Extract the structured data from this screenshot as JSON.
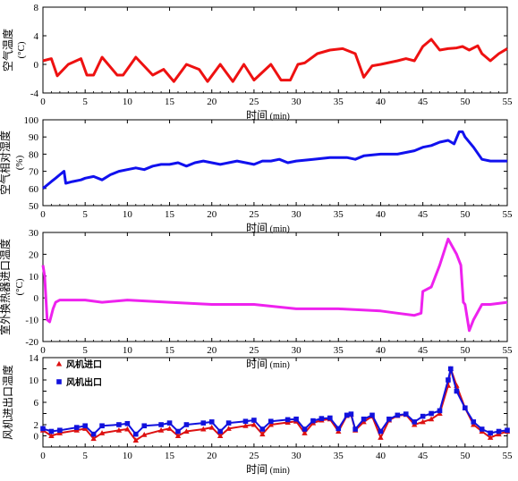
{
  "figure": {
    "background": "#ffffff"
  },
  "chart_data": [
    {
      "type": "line",
      "ylabel": "空气温度",
      "yunit": "(°C)",
      "xlabel": "时间",
      "xunit": "(min)",
      "xlim": [
        0,
        55
      ],
      "ylim": [
        -4,
        8
      ],
      "xticks": [
        0,
        5,
        10,
        15,
        20,
        25,
        30,
        35,
        40,
        45,
        50,
        55
      ],
      "yticks": [
        -4,
        0,
        4,
        8
      ],
      "series": [
        {
          "color": "#ee1111",
          "x": [
            0,
            1,
            1.7,
            3,
            4.5,
            5.2,
            6,
            7,
            8.8,
            9.5,
            11,
            13,
            14.3,
            15.5,
            17,
            18.5,
            19.5,
            21,
            22.5,
            23.8,
            25,
            27,
            28.2,
            29.3,
            30.2,
            31,
            32.5,
            34,
            35.5,
            37,
            38,
            39,
            40,
            42,
            43,
            44,
            45,
            46,
            47,
            48,
            49,
            49.7,
            50.5,
            51.5,
            52,
            53,
            54,
            55
          ],
          "y": [
            0.5,
            0.8,
            -1.6,
            0,
            0.8,
            -1.5,
            -1.5,
            1,
            -1.5,
            -1.5,
            1,
            -1.5,
            -0.7,
            -2.4,
            0,
            -0.7,
            -2.4,
            0,
            -2.4,
            0,
            -2.2,
            0,
            -2.2,
            -2.2,
            0,
            0.2,
            1.5,
            2,
            2.2,
            1.5,
            -1.8,
            -0.2,
            0,
            0.5,
            0.8,
            0.5,
            2.5,
            3.5,
            2,
            2.2,
            2.3,
            2.5,
            2,
            2.6,
            1.5,
            0.5,
            1.5,
            2.2
          ]
        }
      ]
    },
    {
      "type": "line",
      "ylabel": "空气相对湿度",
      "yunit": "(%)",
      "xlabel": "时间",
      "xunit": "(min)",
      "xlim": [
        0,
        55
      ],
      "ylim": [
        50,
        100
      ],
      "xticks": [
        0,
        5,
        10,
        15,
        20,
        25,
        30,
        35,
        40,
        45,
        50,
        55
      ],
      "yticks": [
        50,
        60,
        70,
        80,
        90,
        100
      ],
      "series": [
        {
          "color": "#1111ee",
          "x": [
            0,
            0.5,
            1,
            1.5,
            2,
            2.5,
            2.7,
            3.5,
            4.5,
            5,
            6,
            7,
            8,
            9,
            10,
            11,
            12,
            13,
            14,
            15,
            16,
            17,
            18,
            19,
            20,
            21,
            22,
            23,
            24,
            25,
            26,
            27,
            28,
            29,
            30,
            32,
            34,
            36,
            37,
            38,
            40,
            42,
            44,
            45,
            46,
            47,
            48,
            48.7,
            49.3,
            49.7,
            50,
            51,
            52,
            53,
            54,
            55
          ],
          "y": [
            60,
            62,
            64,
            66,
            68,
            70,
            63,
            64,
            65,
            66,
            67,
            65,
            68,
            70,
            71,
            72,
            71,
            73,
            74,
            74,
            75,
            73,
            75,
            76,
            75,
            74,
            75,
            76,
            75,
            74,
            76,
            76,
            77,
            75,
            76,
            77,
            78,
            78,
            77,
            79,
            80,
            80,
            82,
            84,
            85,
            87,
            88,
            86,
            93,
            93,
            90,
            84,
            77,
            76,
            76,
            76
          ]
        }
      ]
    },
    {
      "type": "line",
      "ylabel": "室外换热器进口温度",
      "yunit": "(°C)",
      "xlabel": "时间",
      "xunit": "(min)",
      "xlim": [
        0,
        55
      ],
      "ylim": [
        -20,
        30
      ],
      "xticks": [
        0,
        5,
        10,
        15,
        20,
        25,
        30,
        35,
        40,
        45,
        50,
        55
      ],
      "yticks": [
        -20,
        -10,
        0,
        10,
        20,
        30
      ],
      "series": [
        {
          "color": "#ee22ee",
          "x": [
            0,
            0.2,
            0.5,
            0.8,
            1,
            1.2,
            1.5,
            2,
            3,
            5,
            7,
            10,
            15,
            20,
            25,
            30,
            35,
            40,
            42,
            44,
            44.8,
            45,
            46,
            47,
            48,
            49,
            49.5,
            49.8,
            50,
            50.5,
            51,
            52,
            53,
            55
          ],
          "y": [
            15,
            10,
            -10,
            -11,
            -8,
            -5,
            -2,
            -1,
            -1,
            -1,
            -2,
            -1,
            -2,
            -3,
            -3,
            -5,
            -5,
            -6,
            -7,
            -8,
            -7,
            3,
            5,
            15,
            27,
            20,
            15,
            -2,
            -3,
            -15,
            -10,
            -3,
            -3,
            -2
          ]
        }
      ]
    },
    {
      "type": "line",
      "ylabel": "风机进出口温度",
      "yunit": "",
      "xlabel": "时间",
      "xunit": "(min)",
      "xlim": [
        0,
        55
      ],
      "ylim": [
        -2,
        14
      ],
      "xticks": [
        0,
        5,
        10,
        15,
        20,
        25,
        30,
        35,
        40,
        45,
        50,
        55
      ],
      "yticks": [
        0,
        2,
        4,
        6,
        8,
        10,
        12,
        14
      ],
      "yticklabels": [
        "0",
        "2",
        "",
        "6",
        "",
        "10",
        "",
        "14"
      ],
      "legend_position": "top-left",
      "series": [
        {
          "name": "风机进口",
          "color": "#dd1111",
          "marker": "triangle",
          "x": [
            0,
            1,
            2,
            4,
            5,
            6,
            7,
            9,
            10,
            11,
            12,
            14,
            15,
            16,
            17,
            19,
            20,
            21,
            22,
            24,
            25,
            26,
            27,
            29,
            30,
            31,
            32,
            33,
            34,
            35,
            36,
            36.5,
            37,
            38,
            39,
            40,
            41,
            42,
            43,
            44,
            45,
            46,
            47,
            48,
            48.3,
            49,
            50,
            51,
            52,
            53,
            54,
            55
          ],
          "y": [
            1,
            0,
            0.5,
            1,
            1.3,
            -0.5,
            0.5,
            1,
            1.2,
            -0.8,
            0.2,
            1,
            1.3,
            0,
            0.8,
            1.2,
            1.5,
            0,
            1.3,
            1.8,
            2,
            0.3,
            2,
            2.4,
            2.6,
            0.5,
            2.3,
            2.8,
            3,
            0.8,
            3.6,
            3.8,
            1,
            2.5,
            3.5,
            -0.3,
            2.8,
            3.6,
            3.8,
            2,
            2.5,
            3,
            4,
            9,
            12,
            9,
            5,
            2,
            0.8,
            -0.3,
            0.3,
            0.8
          ]
        },
        {
          "name": "风机出口",
          "color": "#1111dd",
          "marker": "square",
          "x": [
            0,
            1,
            2,
            4,
            5,
            6,
            7,
            9,
            10,
            11,
            12,
            14,
            15,
            16,
            17,
            19,
            20,
            21,
            22,
            24,
            25,
            26,
            27,
            29,
            30,
            31,
            32,
            33,
            34,
            35,
            36,
            36.5,
            37,
            38,
            39,
            40,
            41,
            42,
            43,
            44,
            45,
            46,
            47,
            48,
            48.3,
            49,
            50,
            51,
            52,
            53,
            54,
            55
          ],
          "y": [
            1.3,
            0.8,
            1,
            1.5,
            1.8,
            0.3,
            1.8,
            2,
            2.2,
            0.3,
            1.8,
            2,
            2.3,
            0.8,
            2,
            2.3,
            2.5,
            0.8,
            2.3,
            2.6,
            2.8,
            1.2,
            2.6,
            2.9,
            3,
            1.2,
            2.7,
            3.1,
            3.2,
            1.3,
            3.7,
            3.9,
            1.2,
            3,
            3.7,
            0.8,
            3,
            3.7,
            3.9,
            2.5,
            3.5,
            4,
            4.5,
            10,
            12,
            8,
            5,
            2.5,
            1.2,
            0.5,
            0.8,
            1
          ]
        }
      ]
    }
  ]
}
